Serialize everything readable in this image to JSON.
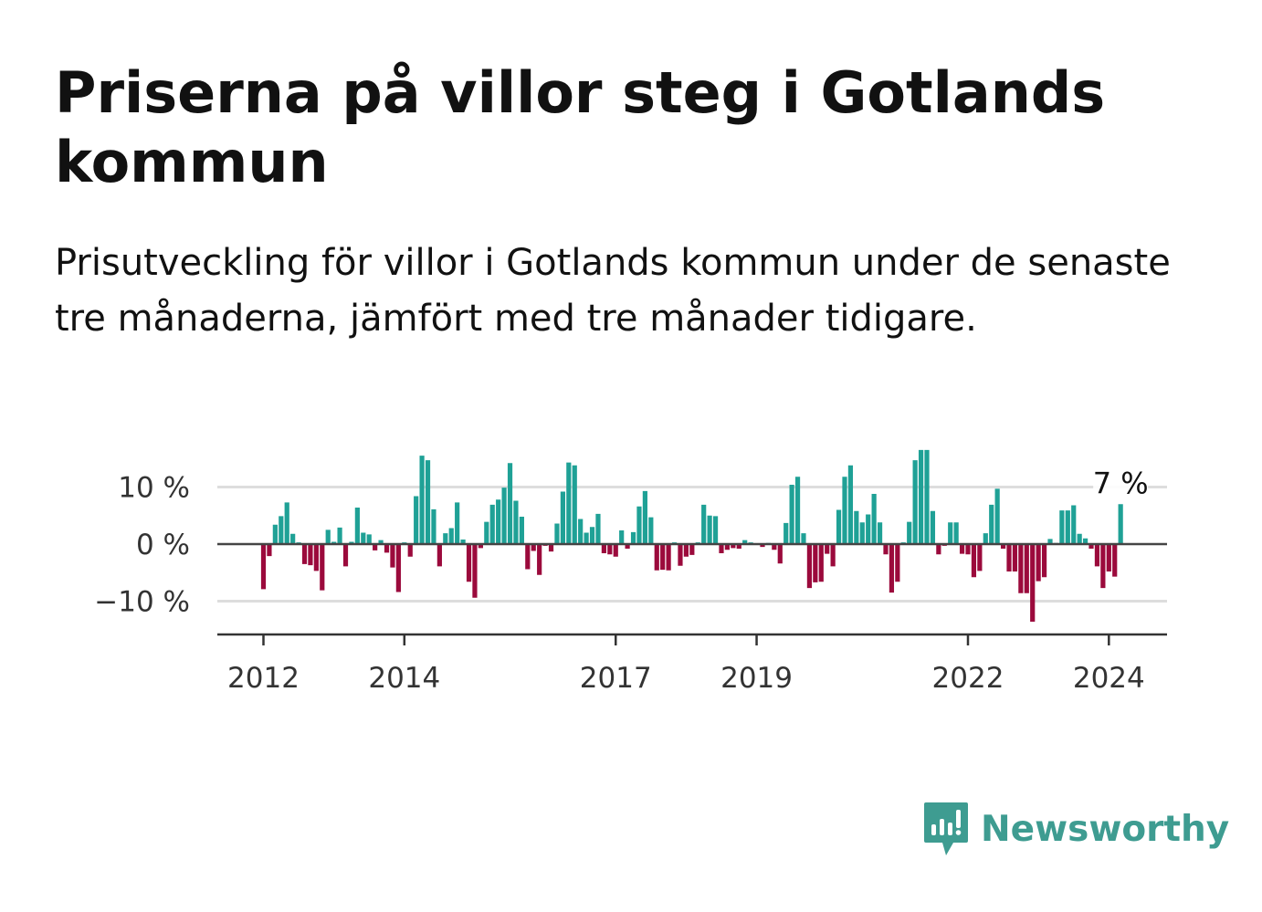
{
  "title": "Priserna på villor steg i Gotlands kommun",
  "subtitle": "Prisutveckling för villor i Gotlands kommun under de senaste tre månaderna, jämfört med tre månader tidigare.",
  "brand": {
    "name": "Newsworthy",
    "icon": "newsworthy-logo-icon",
    "color": "#3e9c91"
  },
  "chart_data": {
    "type": "bar",
    "title": "Priserna på villor steg i Gotlands kommun",
    "xlabel": "",
    "ylabel": "",
    "ylim": [
      -16,
      17
    ],
    "yticks": [
      -10,
      0,
      10
    ],
    "ytick_labels": [
      "−10 %",
      "0 %",
      "10 %"
    ],
    "xticks": [
      2012,
      2014,
      2017,
      2019,
      2022,
      2024
    ],
    "grid": true,
    "legend": "none",
    "positive_color": "#1fa196",
    "negative_color": "#9b0a3c",
    "last_value_label": "7 %",
    "start": "2012-01",
    "frequency": "monthly",
    "values": [
      -7.9,
      -2.1,
      3.4,
      4.9,
      7.3,
      1.8,
      0.3,
      -3.5,
      -3.7,
      -4.7,
      -8.1,
      2.5,
      0.4,
      2.9,
      -3.9,
      0.4,
      6.4,
      2.0,
      1.7,
      -1.1,
      0.7,
      -1.5,
      -4.1,
      -8.4,
      0.3,
      -2.2,
      8.4,
      15.5,
      14.7,
      6.1,
      -3.9,
      1.9,
      2.8,
      7.3,
      0.8,
      -6.6,
      -9.4,
      -0.7,
      3.9,
      6.9,
      7.8,
      9.9,
      14.2,
      7.6,
      4.8,
      -4.4,
      -1.2,
      -5.4,
      -0.3,
      -1.3,
      3.6,
      9.2,
      14.3,
      13.8,
      4.4,
      2.0,
      3.0,
      5.3,
      -1.6,
      -1.8,
      -2.2,
      2.4,
      -0.8,
      2.1,
      6.6,
      9.3,
      4.7,
      -4.6,
      -4.5,
      -4.6,
      0.3,
      -3.8,
      -2.2,
      -1.9,
      0.3,
      6.9,
      5.0,
      4.9,
      -1.6,
      -1.0,
      -0.7,
      -0.8,
      0.7,
      0.3,
      0.1,
      -0.5,
      0.2,
      -1.0,
      -3.4,
      3.7,
      10.4,
      11.8,
      1.9,
      -7.7,
      -6.7,
      -6.6,
      -1.7,
      -3.9,
      6.0,
      11.8,
      13.8,
      5.8,
      3.8,
      5.2,
      8.8,
      3.8,
      -1.8,
      -8.5,
      -6.6,
      0.3,
      3.9,
      14.7,
      16.5,
      16.5,
      5.8,
      -1.8,
      -0.3,
      3.8,
      3.8,
      -1.7,
      -1.8,
      -5.8,
      -4.7,
      1.9,
      6.9,
      9.7,
      -0.8,
      -4.8,
      -4.8,
      -8.6,
      -8.6,
      -13.6,
      -6.5,
      -5.8,
      0.9,
      0.2,
      5.9,
      5.9,
      6.8,
      1.8,
      1.0,
      -0.8,
      -3.9,
      -7.7,
      -4.8,
      -5.7,
      7.0
    ]
  }
}
